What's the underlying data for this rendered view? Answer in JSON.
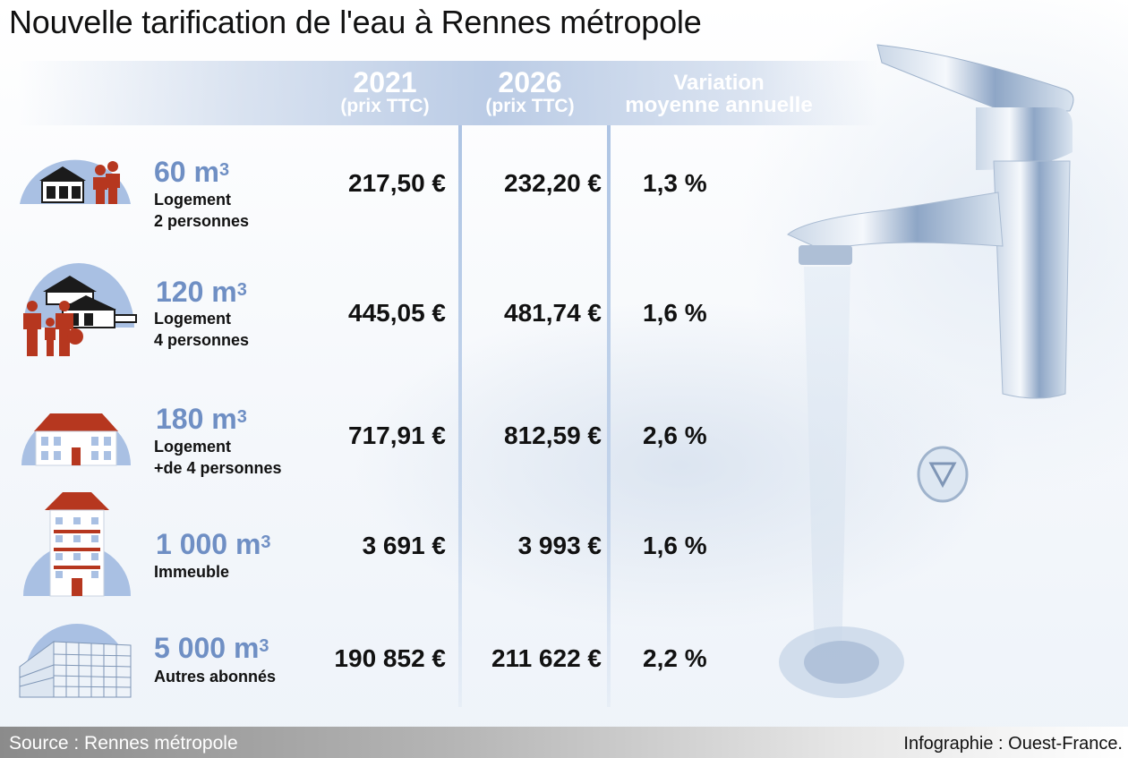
{
  "title": "Nouvelle tarification de l'eau à Rennes métropole",
  "columns": {
    "y2021": {
      "year": "2021",
      "sub": "(prix TTC)"
    },
    "y2026": {
      "year": "2026",
      "sub": "(prix TTC)"
    },
    "variation": {
      "line1": "Variation",
      "line2": "moyenne annuelle"
    }
  },
  "icons": [
    "house-couple-icon",
    "house-family-icon",
    "large-house-icon",
    "apartment-building-icon",
    "office-building-icon"
  ],
  "colors": {
    "accent": "#6f8fc4",
    "header_band": "#b4c6e2",
    "people": "#b6371f"
  },
  "chart_data": {
    "type": "table",
    "title": "Nouvelle tarification de l'eau à Rennes métropole",
    "headers": [
      "2021 (prix TTC)",
      "2026 (prix TTC)",
      "Variation moyenne annuelle"
    ],
    "rows": [
      {
        "volume": "60 m",
        "unit_exp": "3",
        "label1": "Logement",
        "label2": "2 personnes",
        "price_2021": "217,50 €",
        "price_2026": "232,20 €",
        "variation": "1,3 %"
      },
      {
        "volume": "120 m",
        "unit_exp": "3",
        "label1": "Logement",
        "label2": "4 personnes",
        "price_2021": "445,05 €",
        "price_2026": "481,74 €",
        "variation": "1,6 %"
      },
      {
        "volume": "180 m",
        "unit_exp": "3",
        "label1": "Logement",
        "label2": "+de 4 personnes",
        "price_2021": "717,91 €",
        "price_2026": "812,59 €",
        "variation": "2,6 %"
      },
      {
        "volume": "1 000 m",
        "unit_exp": "3",
        "label1": "Immeuble",
        "label2": "",
        "price_2021": "3 691 €",
        "price_2026": "3 993 €",
        "variation": "1,6 %"
      },
      {
        "volume": "5 000 m",
        "unit_exp": "3",
        "label1": "Autres abonnés",
        "label2": "",
        "price_2021": "190 852 €",
        "price_2026": "211 622 €",
        "variation": "2,2 %"
      }
    ]
  },
  "footer": {
    "source": "Source : Rennes métropole",
    "credit": "Infographie : Ouest-France."
  }
}
